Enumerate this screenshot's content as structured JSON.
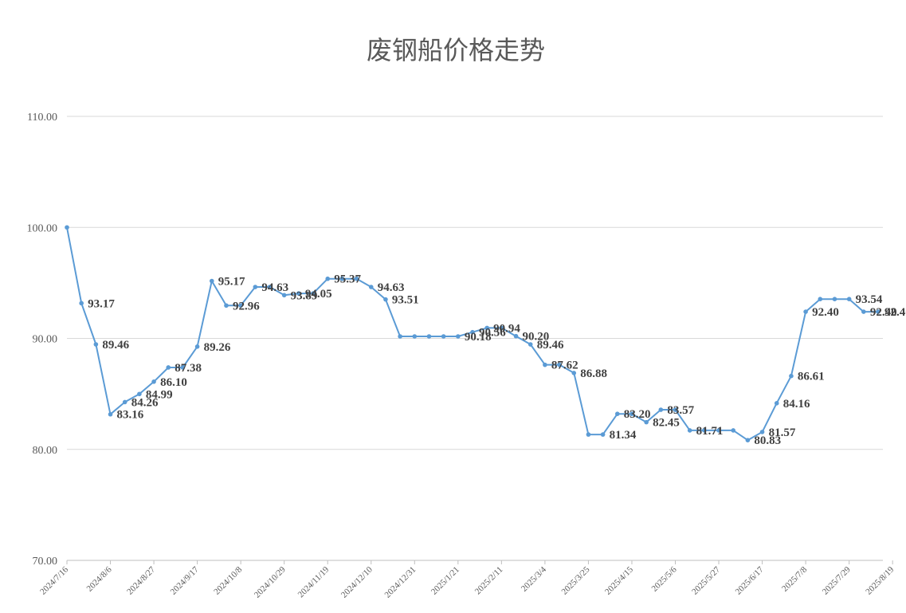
{
  "chart_data": {
    "type": "line",
    "title": "废钢船价格走势",
    "xlabel": "",
    "ylabel": "",
    "ylim": [
      70,
      110
    ],
    "yticks": [
      "70.00",
      "80.00",
      "90.00",
      "100.00",
      "110.00"
    ],
    "grid": true,
    "line_color": "#5B9BD5",
    "x_tick_labels": [
      "2024/7/16",
      "2024/8/6",
      "2024/8/27",
      "2024/9/17",
      "2024/10/8",
      "2024/10/29",
      "2024/11/19",
      "2024/12/10",
      "2024/12/31",
      "2025/1/21",
      "2025/2/11",
      "2025/3/4",
      "2025/3/25",
      "2025/4/15",
      "2025/5/6",
      "2025/5/27",
      "2025/6/17",
      "2025/7/8",
      "2025/7/29",
      "2025/8/19"
    ],
    "series": [
      {
        "values": [
          100.0,
          93.17,
          89.46,
          83.16,
          84.26,
          84.99,
          86.1,
          87.38,
          87.38,
          89.26,
          95.17,
          92.96,
          92.96,
          94.63,
          94.63,
          93.89,
          94.05,
          94.05,
          95.37,
          95.37,
          95.37,
          94.63,
          93.51,
          90.18,
          90.18,
          90.18,
          90.18,
          90.18,
          90.56,
          90.94,
          90.94,
          90.2,
          89.46,
          87.62,
          87.62,
          86.88,
          81.34,
          81.34,
          83.2,
          83.2,
          82.45,
          83.57,
          83.57,
          81.71,
          81.71,
          81.71,
          81.71,
          80.83,
          81.57,
          84.16,
          86.61,
          92.4,
          93.54,
          93.54,
          93.54,
          92.4,
          92.4
        ],
        "data_labels": [
          "",
          "93.17",
          "89.46",
          "83.16",
          "84.26",
          "84.99",
          "86.10",
          "87.38",
          "",
          "89.26",
          "95.17",
          "92.96",
          "",
          "94.63",
          "",
          "93.89",
          "94.05",
          "",
          "95.37",
          "",
          "",
          "94.63",
          "93.51",
          "",
          "",
          "",
          "",
          "90.18",
          "90.56",
          "90.94",
          "",
          "90.20",
          "89.46",
          "87.62",
          "",
          "86.88",
          "",
          "81.34",
          "83.20",
          "",
          "82.45",
          "83.57",
          "",
          "81.71",
          "",
          "",
          "",
          "80.83",
          "81.57",
          "84.16",
          "86.61",
          "92.40",
          "",
          "",
          "93.54",
          "92.40",
          "92.40"
        ]
      }
    ]
  }
}
